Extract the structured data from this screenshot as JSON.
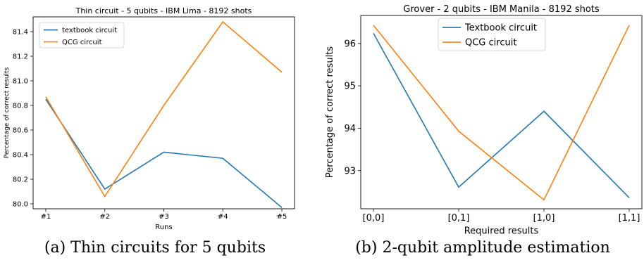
{
  "chart_data": [
    {
      "type": "line",
      "title": "Thin circuit - 5 qubits - IBM Lima - 8192 shots",
      "xlabel": "Runs",
      "ylabel": "Percentage of correct results",
      "categories": [
        "#1",
        "#2",
        "#3",
        "#4",
        "#5"
      ],
      "yticks": [
        "80.0",
        "80.2",
        "80.4",
        "80.6",
        "80.8",
        "81.0",
        "81.2",
        "81.4"
      ],
      "ylim": [
        79.96,
        81.52
      ],
      "grid": false,
      "legend": "top-left",
      "series": [
        {
          "name": "textbook circuit",
          "color": "#1f77b4",
          "values": [
            80.85,
            80.12,
            80.42,
            80.37,
            79.97
          ]
        },
        {
          "name": "QCG circuit",
          "color": "#ff7f0e",
          "values": [
            80.87,
            80.06,
            80.8,
            81.48,
            81.07
          ]
        }
      ]
    },
    {
      "type": "line",
      "title": "Grover - 2 qubits - IBM Manila - 8192 shots",
      "xlabel": "Required results",
      "ylabel": "Percentage of correct results",
      "categories": [
        "[0,0]",
        "[0,1]",
        "[1,0]",
        "[1,1]"
      ],
      "yticks": [
        "93",
        "94",
        "95",
        "96"
      ],
      "ylim": [
        92.1,
        96.66
      ],
      "grid": false,
      "legend": "top-center",
      "series": [
        {
          "name": "Textbook circuit",
          "color": "#1f77b4",
          "values": [
            96.24,
            92.61,
            94.4,
            92.36
          ]
        },
        {
          "name": "QCG circuit",
          "color": "#ff7f0e",
          "values": [
            96.43,
            93.93,
            92.31,
            96.43
          ]
        }
      ]
    }
  ],
  "captions": {
    "a": "(a) Thin circuits for 5 qubits",
    "b": "(b) 2-qubit amplitude estimation"
  }
}
